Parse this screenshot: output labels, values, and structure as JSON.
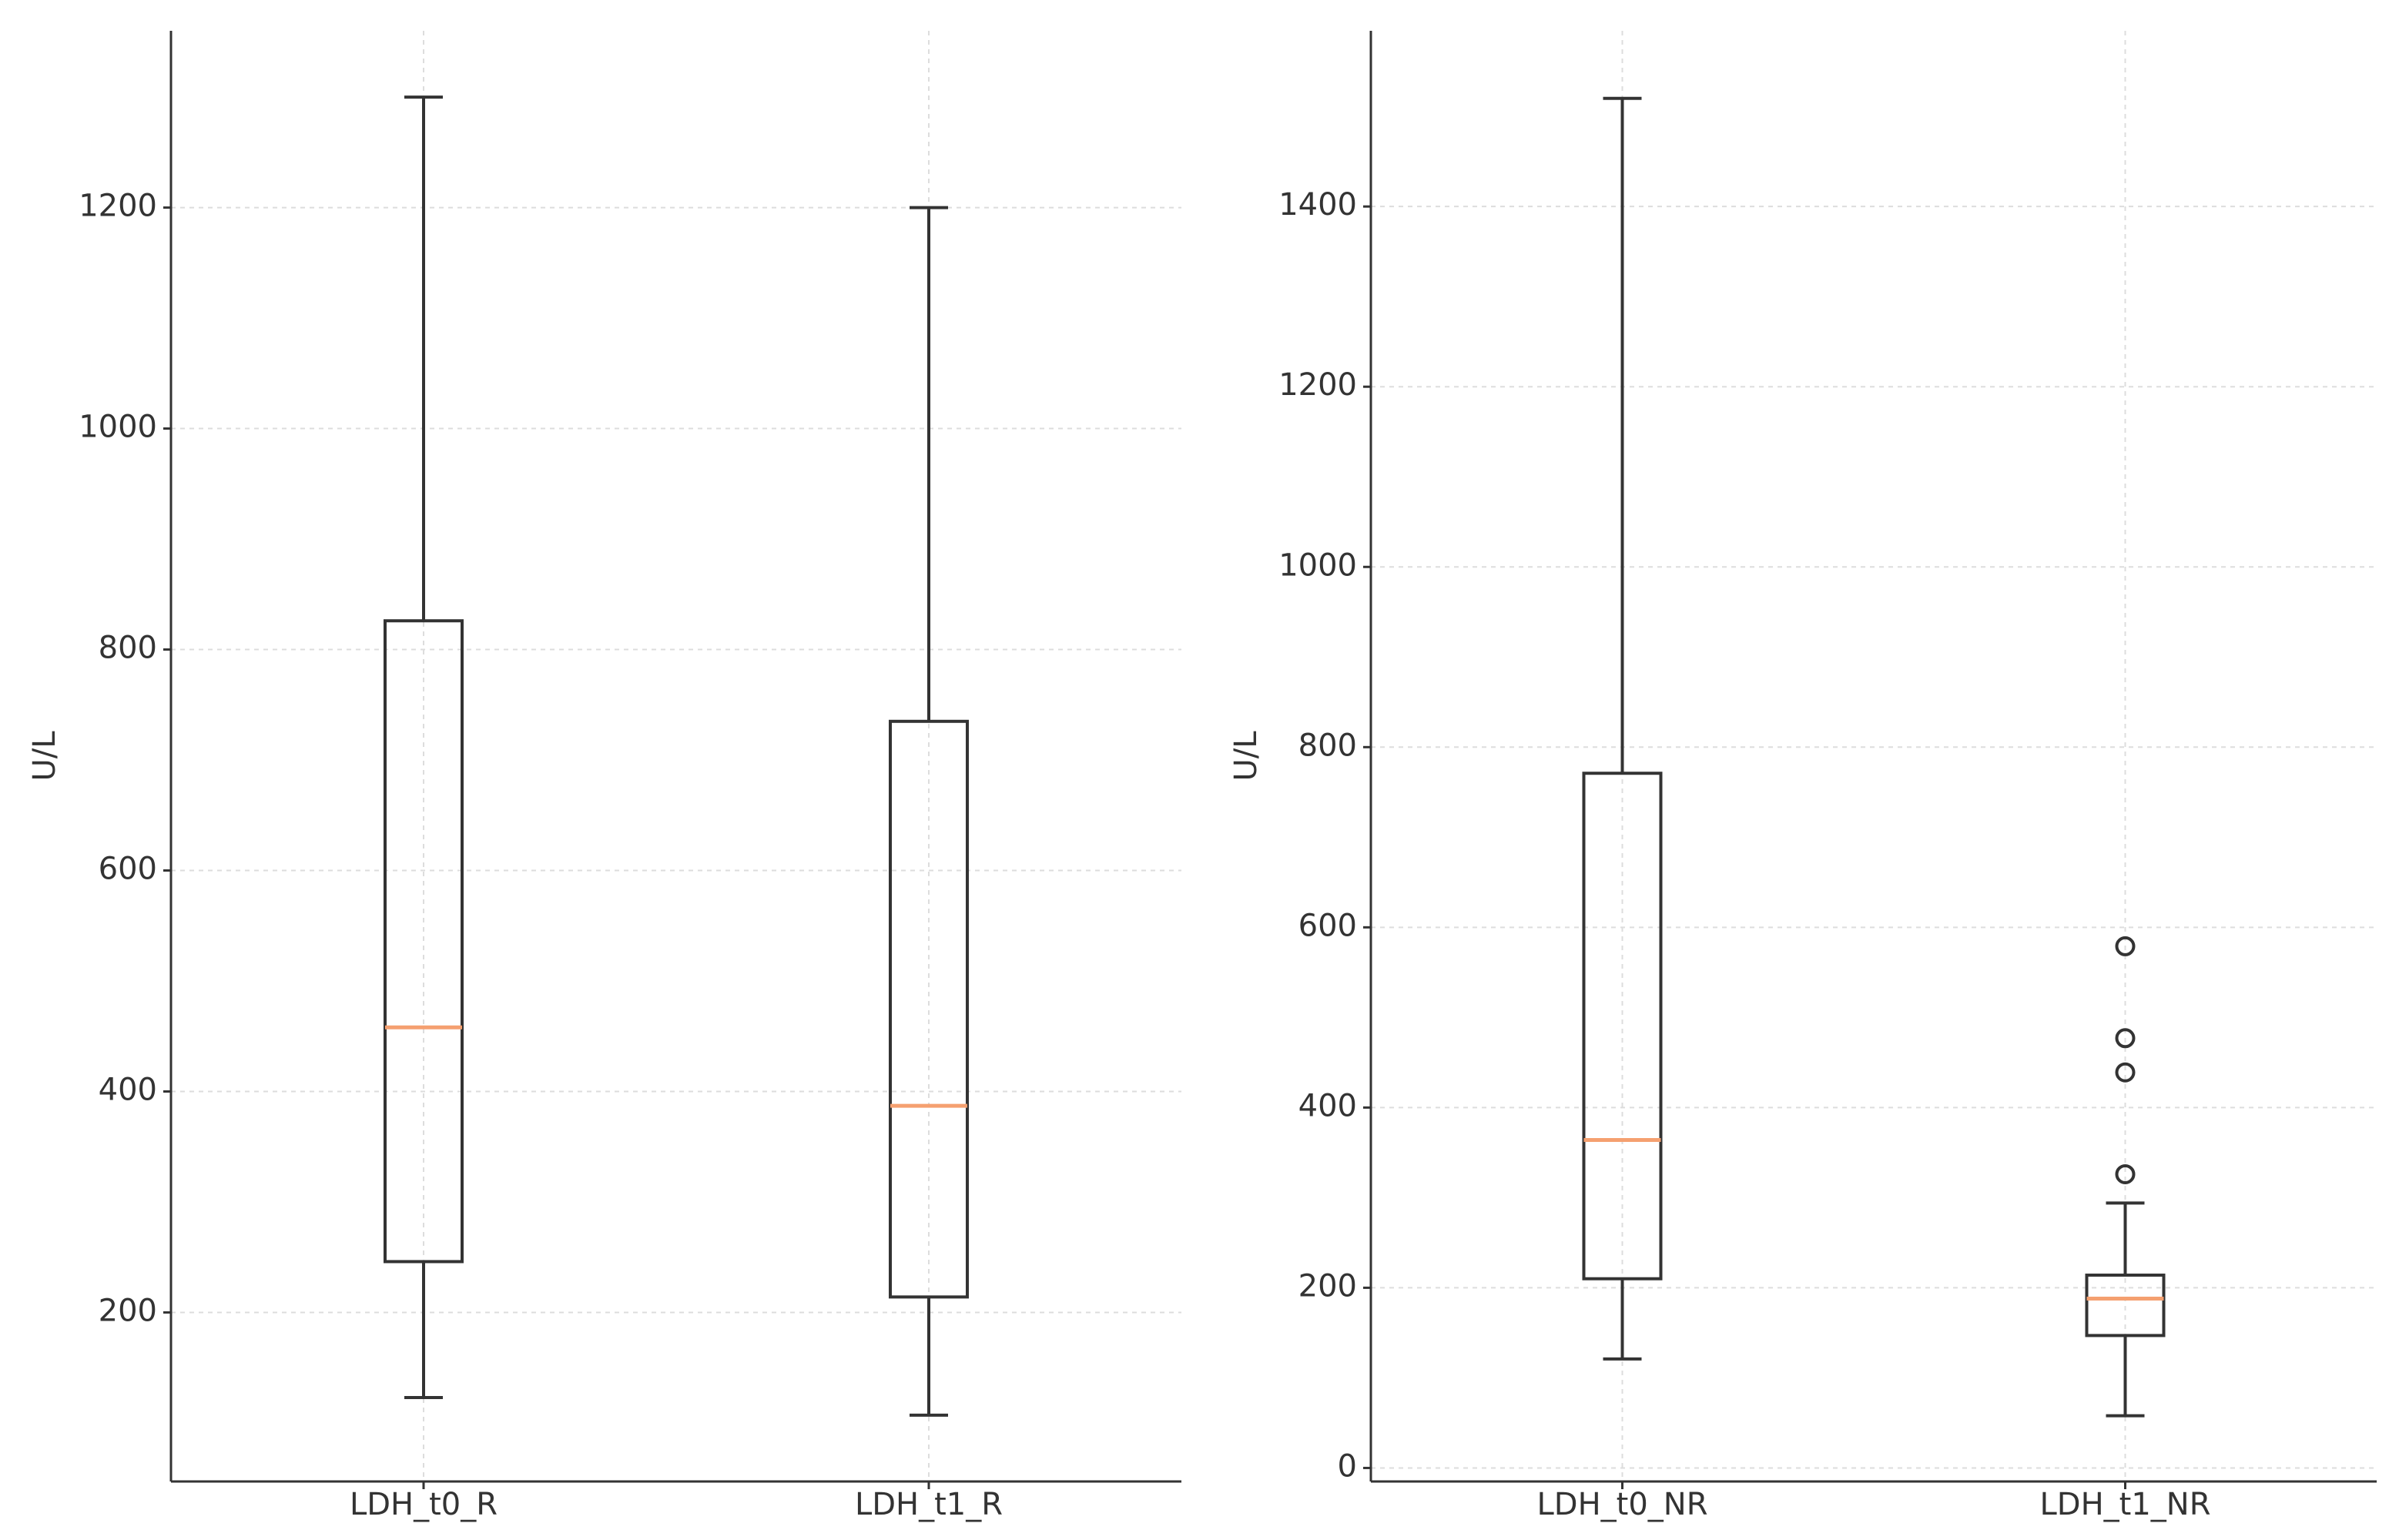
{
  "chart_data": [
    {
      "type": "box",
      "ylabel": "U/L",
      "categories": [
        "LDH_t0_R",
        "LDH_t1_R"
      ],
      "boxes": [
        {
          "whislo": 123,
          "q1": 246,
          "med": 458,
          "q3": 826,
          "whishi": 1300,
          "fliers": []
        },
        {
          "whislo": 107,
          "q1": 214,
          "med": 387,
          "q3": 735,
          "whishi": 1200,
          "fliers": []
        }
      ],
      "box_color": "#333333",
      "median_color": "#f5a070",
      "ylim": [
        47,
        1360
      ],
      "yticks": [
        200,
        400,
        600,
        800,
        1000,
        1200
      ],
      "grid": true
    },
    {
      "type": "box",
      "ylabel": "U/L",
      "categories": [
        "LDH_t0_NR",
        "LDH_t1_NR"
      ],
      "boxes": [
        {
          "whislo": 121,
          "q1": 210,
          "med": 364,
          "q3": 771,
          "whishi": 1520,
          "fliers": []
        },
        {
          "whislo": 58,
          "q1": 147,
          "med": 188,
          "q3": 214,
          "whishi": 294,
          "fliers": [
            579,
            477,
            439,
            326
          ]
        }
      ],
      "box_color": "#333333",
      "median_color": "#f5a070",
      "ylim": [
        -15,
        1595
      ],
      "yticks": [
        0,
        200,
        400,
        600,
        800,
        1000,
        1200,
        1400
      ],
      "grid": true
    }
  ]
}
